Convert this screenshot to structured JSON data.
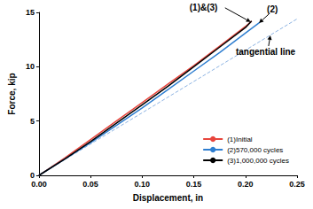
{
  "chart_data": {
    "type": "line",
    "x_label": "Displacement, in",
    "y_label": "Force, kip",
    "xlim": [
      0,
      0.25
    ],
    "xticks": [
      {
        "value": 0,
        "label": "0.00"
      },
      0.05,
      {
        "value": 0.1,
        "label": "0.10"
      },
      0.15,
      {
        "value": 0.2,
        "label": "0.20"
      },
      0.25
    ],
    "ylim": [
      0,
      15
    ],
    "yticks": [
      0,
      5,
      10,
      15
    ],
    "grid": false,
    "legend": "lower right",
    "series": [
      {
        "name": "(1)Initial",
        "color": "#e8453c",
        "line_style": "solid",
        "x": [
          0,
          0.025,
          0.05,
          0.075,
          0.1,
          0.125,
          0.15,
          0.175,
          0.2,
          0.206
        ],
        "values": [
          0,
          1.6,
          3.3,
          5.0,
          6.7,
          8.4,
          10.1,
          11.9,
          13.7,
          14.2
        ]
      },
      {
        "name": "(2)570,000 cycles",
        "color": "#2e7ed0",
        "line_style": "solid",
        "x": [
          0,
          0.025,
          0.05,
          0.075,
          0.1,
          0.125,
          0.15,
          0.175,
          0.2,
          0.214
        ],
        "values": [
          0,
          1.5,
          3.0,
          4.6,
          6.2,
          7.9,
          9.6,
          11.3,
          13.1,
          14.1
        ]
      },
      {
        "name": "(3)1,000,000 cycles",
        "color": "#000000",
        "line_style": "solid",
        "x": [
          0,
          0.025,
          0.05,
          0.075,
          0.1,
          0.125,
          0.15,
          0.175,
          0.2,
          0.206
        ],
        "values": [
          0,
          1.5,
          3.1,
          4.8,
          6.5,
          8.2,
          10.0,
          11.8,
          13.6,
          14.2
        ]
      }
    ],
    "tangent": {
      "name": "tangential line",
      "color": "#8db3e2",
      "line_style": "dashed",
      "x": [
        0,
        0.25
      ],
      "values": [
        0,
        14.4
      ]
    },
    "annotations": [
      {
        "text": "(1)&(3)",
        "series": [
          "(1)Initial",
          "(3)1,000,000 cycles"
        ]
      },
      {
        "text": "(2)",
        "series": [
          "(2)570,000 cycles"
        ]
      },
      {
        "text": "tangential line",
        "series": [
          "tangential line"
        ]
      }
    ]
  }
}
